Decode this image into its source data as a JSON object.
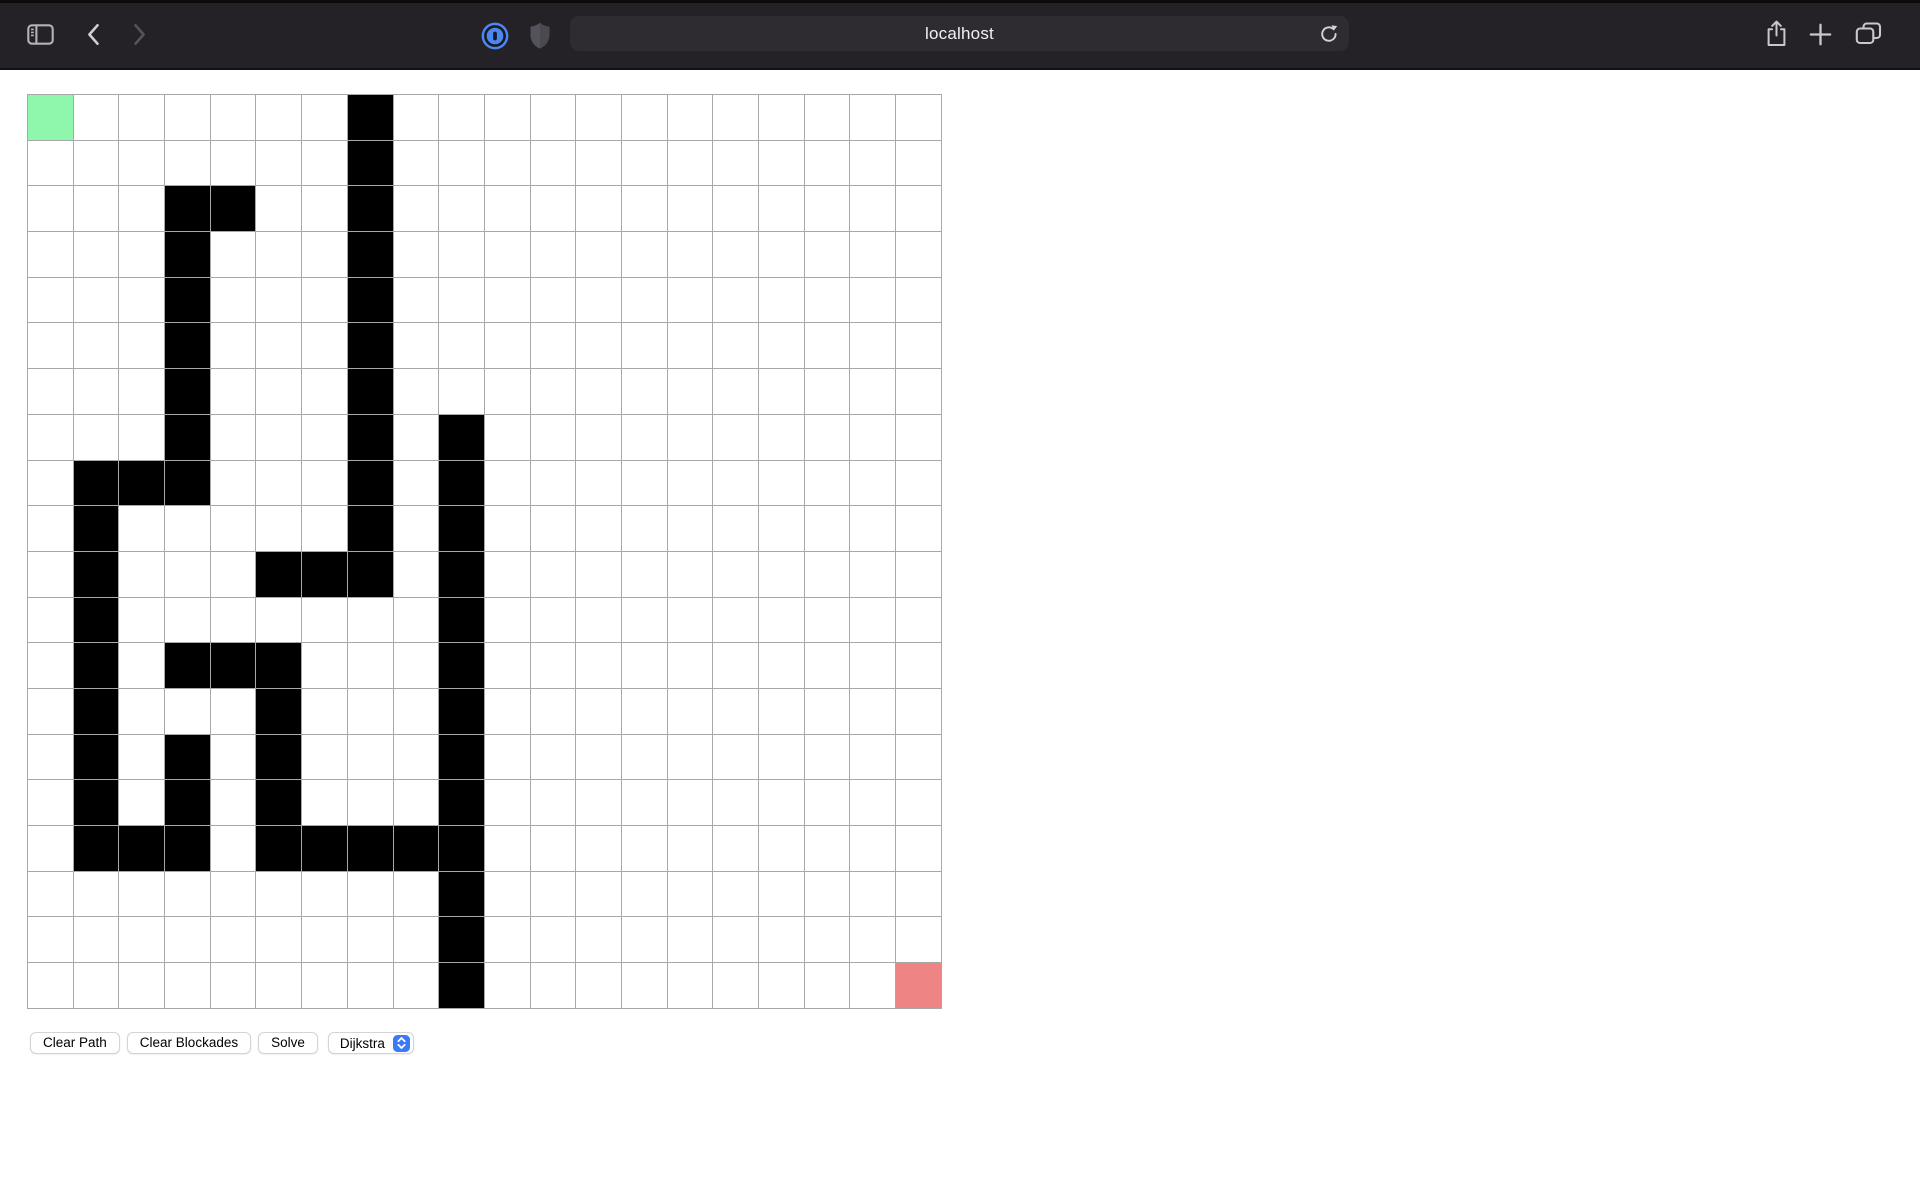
{
  "browser": {
    "url": "localhost",
    "toolbar_icons": [
      "sidebar-toggle-icon",
      "back-icon",
      "forward-icon",
      "onepassword-extension-icon",
      "privacy-shield-icon",
      "reload-icon",
      "share-icon",
      "new-tab-icon",
      "tab-overview-icon"
    ]
  },
  "grid": {
    "rows": 20,
    "cols": 20,
    "legend": {
      "S": "start",
      "E": "end",
      "#": "blockade",
      ".": "empty"
    },
    "cells": [
      "S......#............",
      ".......#............",
      "...##..#............",
      "...#...#............",
      "...#...#............",
      "...#...#............",
      "...#...#............",
      "...#...#.#..........",
      ".###...#.#..........",
      ".#.....#.#..........",
      ".#...###.#..........",
      ".#.......#..........",
      ".#.###...#..........",
      ".#...#...#..........",
      ".#.#.#...#..........",
      ".#.#.#...#..........",
      ".###.#####..........",
      ".........#..........",
      ".........#..........",
      ".........#.........E"
    ],
    "colors": {
      "start": "#8ff7ab",
      "end": "#ee8484",
      "wall": "#000000",
      "gridline": "#a8a8a8"
    }
  },
  "controls": {
    "clear_path_label": "Clear Path",
    "clear_blockades_label": "Clear Blockades",
    "solve_label": "Solve",
    "algorithm_select": {
      "value": "Dijkstra",
      "accent_color": "#3b7af7"
    }
  }
}
